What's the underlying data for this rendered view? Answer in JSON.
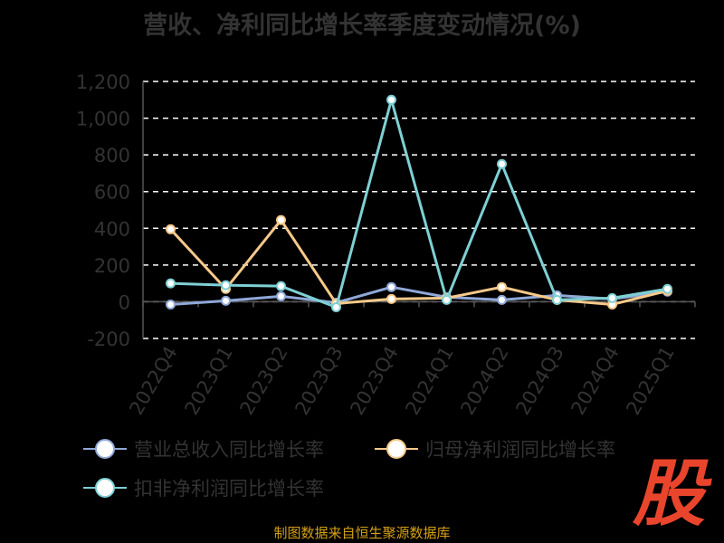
{
  "title": "营收、净利同比增长率季度变动情况(%)",
  "footer": "制图数据来自恒生聚源数据库",
  "brand_char": "股",
  "colors": {
    "background": "#000000",
    "grid": "#ffffff",
    "title": "#333333",
    "axis_text": "#333333",
    "revenue": "#8fa8d8",
    "net_profit": "#f7c98a",
    "deducted_profit": "#7ed0d4",
    "footer": "#d4a017",
    "brand": "#e8452c"
  },
  "chart_data": {
    "type": "line",
    "categories": [
      "2022Q4",
      "2023Q1",
      "2023Q2",
      "2023Q3",
      "2023Q4",
      "2024Q1",
      "2024Q2",
      "2024Q3",
      "2024Q4",
      "2025Q1"
    ],
    "ylim": [
      -200,
      1200
    ],
    "yticks": [
      -200,
      0,
      200,
      400,
      600,
      800,
      1000,
      1200
    ],
    "ytick_labels": [
      "-200",
      "0",
      "200",
      "400",
      "600",
      "800",
      "1,000",
      "1,200"
    ],
    "grid": true,
    "grid_style": "dashed",
    "legend_position": "bottom",
    "series": [
      {
        "name": "营业总收入同比增长率",
        "color_key": "revenue",
        "values": [
          -15,
          5,
          30,
          -5,
          80,
          25,
          10,
          35,
          15,
          55
        ]
      },
      {
        "name": "归母净利润同比增长率",
        "color_key": "net_profit",
        "values": [
          395,
          70,
          445,
          -10,
          15,
          20,
          80,
          10,
          -15,
          60
        ]
      },
      {
        "name": "扣非净利润同比增长率",
        "color_key": "deducted_profit",
        "values": [
          100,
          90,
          85,
          -30,
          1100,
          10,
          750,
          10,
          20,
          70
        ]
      }
    ]
  }
}
